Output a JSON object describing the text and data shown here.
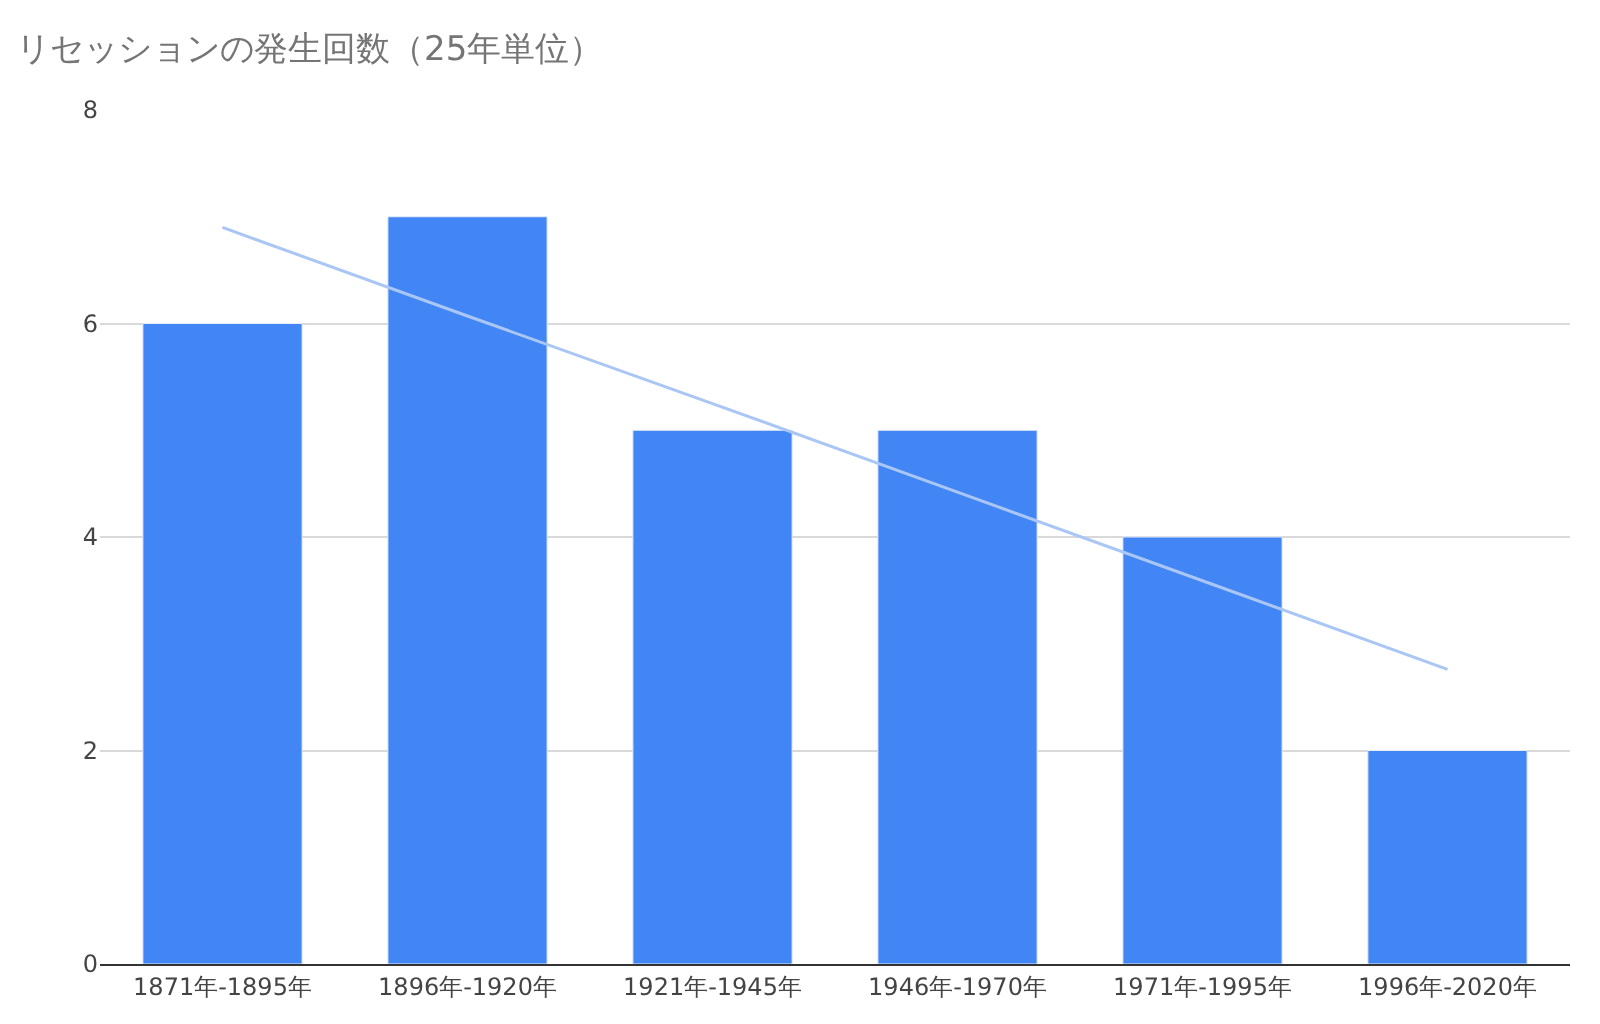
{
  "chart_data": {
    "type": "bar",
    "title": "リセッションの発生回数（25年単位）",
    "categories": [
      "1871年-1895年",
      "1896年-1920年",
      "1921年-1945年",
      "1946年-1970年",
      "1971年-1995年",
      "1996年-2020年"
    ],
    "series": [
      {
        "color": "#4285f4",
        "values": [
          6,
          7,
          5,
          5,
          4,
          2
        ]
      },
      {
        "type": "line",
        "color": "#a9c6f5",
        "values": [
          6.9,
          6.07,
          5.25,
          4.42,
          3.59,
          2.76
        ]
      }
    ],
    "ylim": [
      0,
      8
    ],
    "yticks": [
      0,
      2,
      4,
      6,
      8
    ],
    "grid": "y"
  }
}
